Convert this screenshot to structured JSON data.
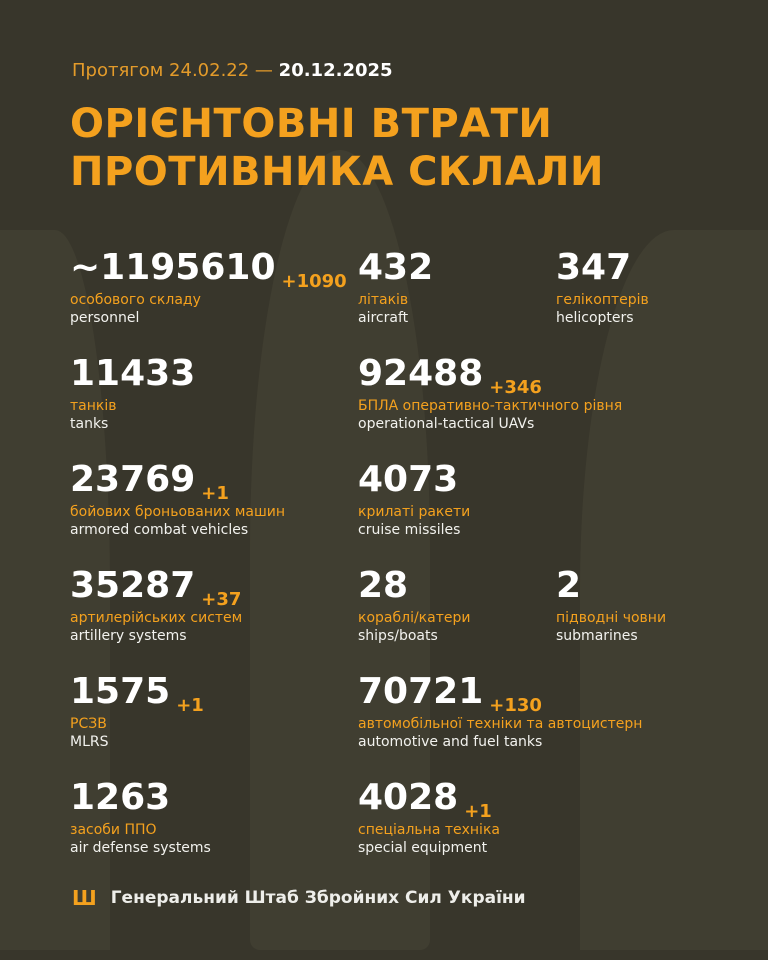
{
  "header": {
    "period_prefix": "Протягом 24.02.22 —",
    "period_end": "20.12.2025",
    "title_line1": "ОРІЄНТОВНІ ВТРАТИ",
    "title_line2": "ПРОТИВНИКА СКЛАЛИ"
  },
  "items": [
    {
      "value": "~1195610",
      "delta": "+1090",
      "ua": "особового складу",
      "en": "personnel"
    },
    {
      "value": "432",
      "delta": "",
      "ua": "літаків",
      "en": "aircraft"
    },
    {
      "value": "347",
      "delta": "",
      "ua": "гелікоптерів",
      "en": "helicopters"
    },
    {
      "value": "11433",
      "delta": "",
      "ua": "танків",
      "en": "tanks"
    },
    {
      "value": "92488",
      "delta": "+346",
      "ua": "БПЛА оперативно-тактичного рівня",
      "en": "operational-tactical UAVs"
    },
    {
      "value": "23769",
      "delta": "+1",
      "ua": "бойових броньованих машин",
      "en": "armored combat vehicles"
    },
    {
      "value": "4073",
      "delta": "",
      "ua": "крилаті ракети",
      "en": "cruise missiles"
    },
    {
      "value": "35287",
      "delta": "+37",
      "ua": "артилерійських систем",
      "en": "artillery systems"
    },
    {
      "value": "28",
      "delta": "",
      "ua": "кораблі/катери",
      "en": "ships/boats"
    },
    {
      "value": "2",
      "delta": "",
      "ua": "підводні човни",
      "en": "submarines"
    },
    {
      "value": "1575",
      "delta": "+1",
      "ua": "РСЗВ",
      "en": "MLRS"
    },
    {
      "value": "70721",
      "delta": "+130",
      "ua": "автомобільної техніки та автоцистерн",
      "en": "automotive and fuel tanks"
    },
    {
      "value": "1263",
      "delta": "",
      "ua": "засоби ППО",
      "en": "air defense systems"
    },
    {
      "value": "4028",
      "delta": "+1",
      "ua": "спеціальна техніка",
      "en": "special equipment"
    }
  ],
  "footer": {
    "icon": "trident-icon",
    "text": "Генеральний Штаб Збройних Сил України"
  },
  "colors": {
    "background": "#38362b",
    "accent": "#f4a11e",
    "text": "#ffffff"
  }
}
